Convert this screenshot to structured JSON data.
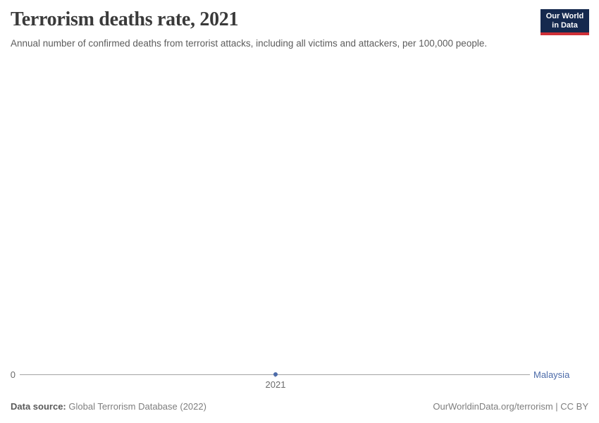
{
  "header": {
    "title": "Terrorism deaths rate, 2021",
    "subtitle": "Annual number of confirmed deaths from terrorist attacks, including all victims and attackers, per 100,000 people.",
    "logo": {
      "line1": "Our World",
      "line2": "in Data",
      "bg_color": "#15294e",
      "accent_color": "#cf3037"
    }
  },
  "chart_data": {
    "type": "line",
    "title": "Terrorism deaths rate, 2021",
    "subtitle": "Annual number of confirmed deaths from terrorist attacks, including all victims and attackers, per 100,000 people.",
    "x": [
      2021
    ],
    "series": [
      {
        "name": "Malaysia",
        "values": [
          0
        ],
        "color": "#4c6ba9"
      }
    ],
    "xlabel": "",
    "ylabel": "",
    "x_tick_labels": [
      "2021"
    ],
    "y_tick_labels": [
      "0"
    ],
    "ylim": [
      0,
      null
    ],
    "grid": false,
    "legend_position": "end-of-line",
    "axis_color": "#a3a3a3"
  },
  "footer": {
    "source_label": "Data source:",
    "source_value": "Global Terrorism Database (2022)",
    "attribution": "OurWorldinData.org/terrorism | CC BY"
  }
}
